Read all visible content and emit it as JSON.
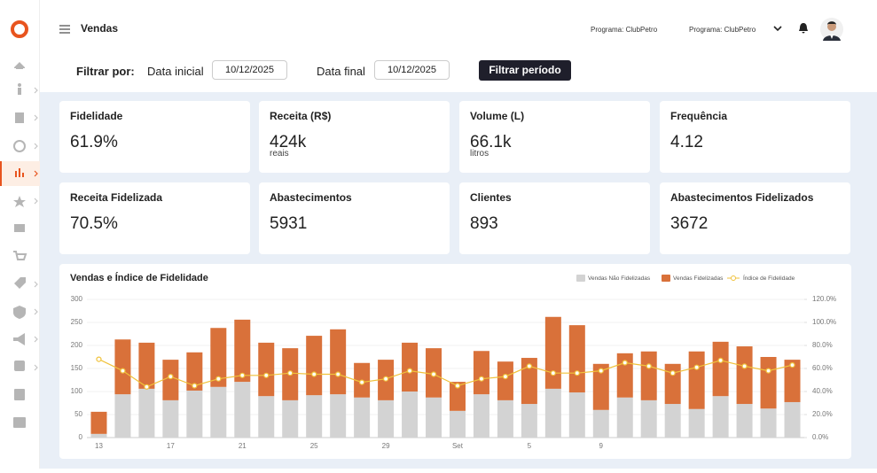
{
  "header": {
    "title": "Vendas",
    "programs": [
      "Programa: ClubPetro",
      "Programa: ClubPetro"
    ]
  },
  "filters": {
    "label": "Filtrar por:",
    "start_label": "Data inicial",
    "start_value": "10/12/2025",
    "end_label": "Data final",
    "end_value": "10/12/2025",
    "button": "Filtrar período"
  },
  "kpis": [
    {
      "label": "Fidelidade",
      "value": "61.9%"
    },
    {
      "label": "Receita (R$)",
      "value": "424k",
      "unit": "reais"
    },
    {
      "label": "Volume (L)",
      "value": "66.1k",
      "unit": "litros"
    },
    {
      "label": "Frequência",
      "value": "4.12"
    },
    {
      "label": "Receita Fidelizada",
      "value": "70.5%"
    },
    {
      "label": "Abastecimentos",
      "value": "5931"
    },
    {
      "label": "Clientes",
      "value": "893"
    },
    {
      "label": "Abastecimentos Fidelizados",
      "value": "3672"
    }
  ],
  "chart_data": {
    "type": "bar",
    "stacked": true,
    "title": "Vendas e Índice de Fidelidade",
    "categories": [
      "13",
      null,
      null,
      "17",
      null,
      null,
      "21",
      null,
      null,
      "25",
      null,
      null,
      "29",
      null,
      null,
      "Set",
      null,
      null,
      "5",
      null,
      null,
      "9",
      null,
      null,
      null,
      null,
      null,
      null,
      null,
      null
    ],
    "series": [
      {
        "name": "Vendas Não Fidelizadas",
        "color": "#d3d3d3",
        "values": [
          8,
          94,
          106,
          81,
          102,
          110,
          121,
          90,
          81,
          92,
          94,
          87,
          81,
          100,
          87,
          58,
          94,
          81,
          73,
          106,
          98,
          60,
          87,
          81,
          73,
          62,
          90,
          73,
          63,
          77
        ]
      },
      {
        "name": "Vendas Fidelizadas",
        "color": "#d9713a",
        "values": [
          48,
          119,
          100,
          88,
          83,
          128,
          135,
          116,
          113,
          129,
          141,
          75,
          88,
          106,
          107,
          63,
          94,
          84,
          100,
          156,
          146,
          100,
          96,
          106,
          87,
          125,
          118,
          125,
          112,
          92
        ]
      },
      {
        "name": "Índice de Fidelidade",
        "color": "#f0c23b",
        "type": "line",
        "axis": "y2",
        "values": [
          68,
          58,
          44,
          53,
          45,
          51,
          54,
          54,
          56,
          55,
          55,
          48,
          51,
          58,
          55,
          45,
          51,
          53,
          62,
          56,
          56,
          58,
          65,
          62,
          56,
          61,
          67,
          62,
          58,
          63
        ]
      }
    ],
    "ylim": [
      0,
      300
    ],
    "yticks": [
      0,
      50,
      100,
      150,
      200,
      250,
      300
    ],
    "y2lim": [
      0,
      120
    ],
    "y2ticks": [
      {
        "value": 0,
        "label": "0.0%"
      },
      {
        "value": 20,
        "label": "20.0%"
      },
      {
        "value": 40,
        "label": "40.0%"
      },
      {
        "value": 60,
        "label": "60.0%"
      },
      {
        "value": 80,
        "label": "80.0%"
      },
      {
        "value": 100,
        "label": "100.0%"
      },
      {
        "value": 120,
        "label": "120.0%"
      }
    ],
    "grid": true,
    "legend": "top-right"
  }
}
